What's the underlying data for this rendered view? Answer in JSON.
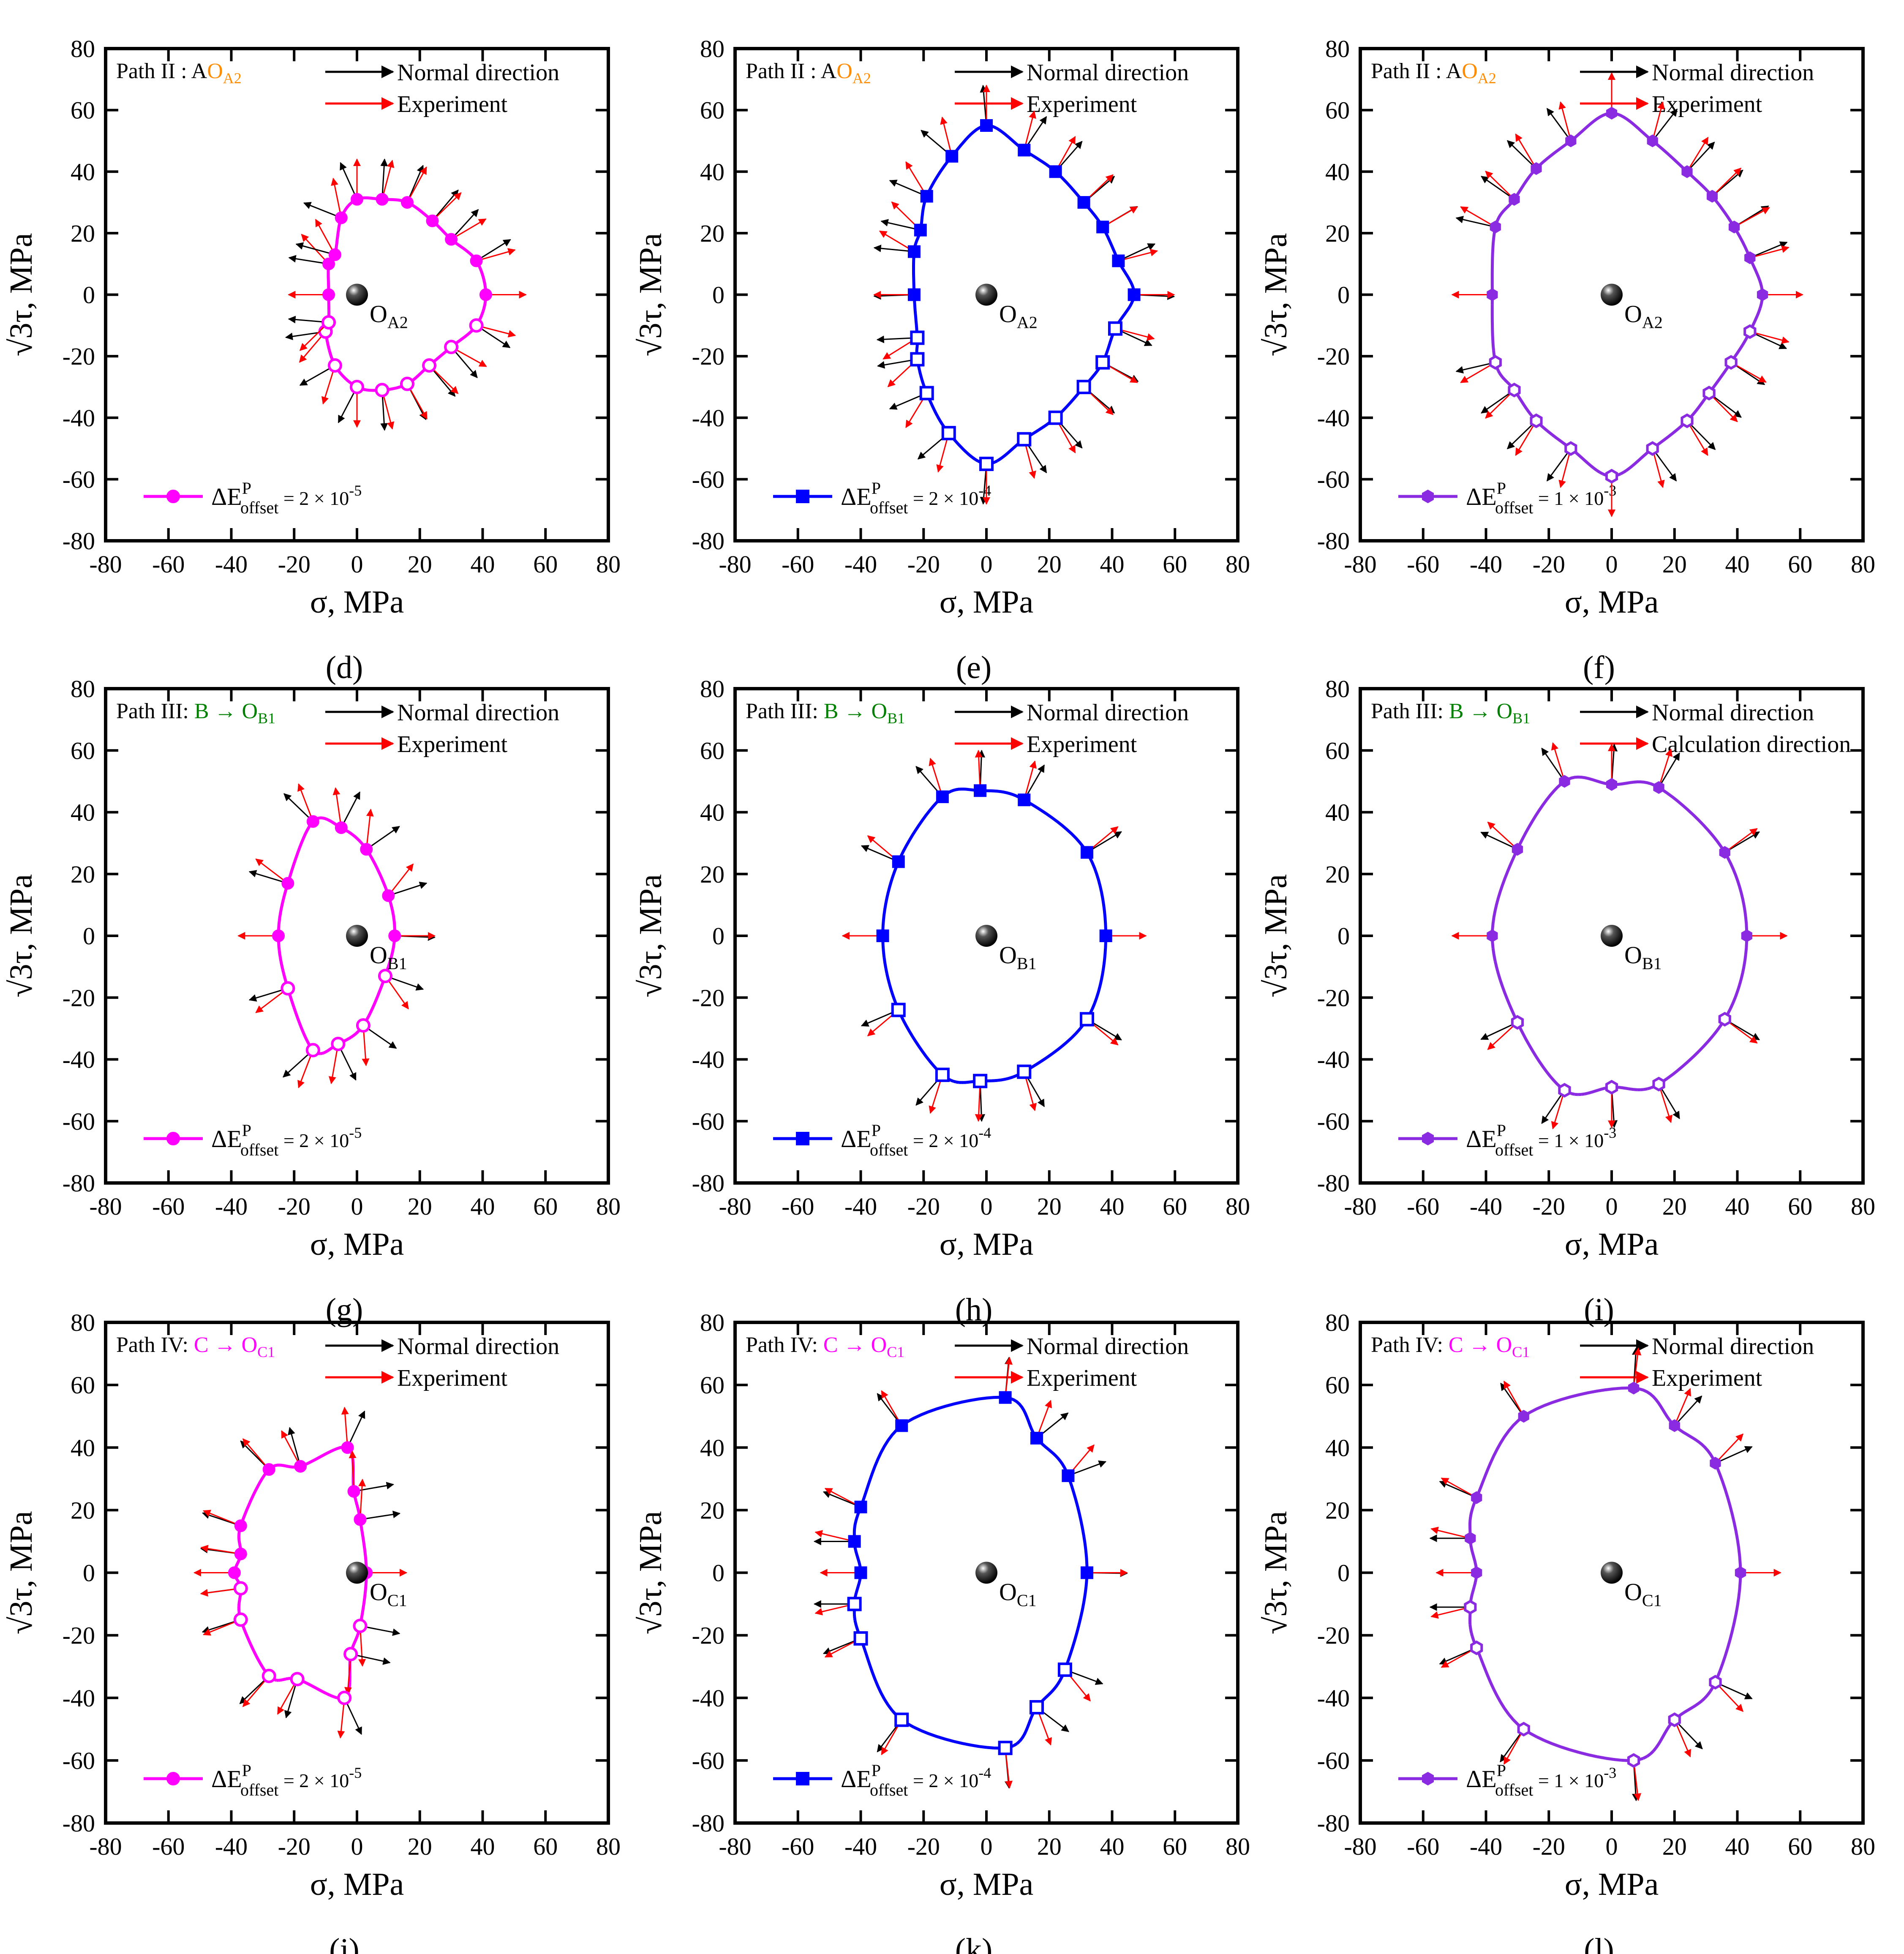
{
  "chart_data": [
    {
      "panel": "(d)",
      "title": "Path II : A",
      "target": "O",
      "target_sub": "A2",
      "title_color": "#FF8C00",
      "legend_top": [
        "Normal direction",
        "Experiment"
      ],
      "color": "#FF00FF",
      "marker": "circle",
      "legend_label": "ΔE",
      "legend_sup": "P",
      "legend_sub": "offset",
      "legend_value": " = 2 × 10",
      "legend_exp": "-5",
      "center_label": "O",
      "center_sub": "A2",
      "type": "line",
      "xlabel": "σ, MPa",
      "ylabel": "√3τ, MPa",
      "xlim": [
        -80,
        80
      ],
      "ylim": [
        -80,
        80
      ],
      "ticks": [
        -80,
        -60,
        -40,
        -20,
        0,
        20,
        40,
        60,
        80
      ],
      "center": [
        0,
        0
      ],
      "measured": [
        [
          -9,
          0
        ],
        [
          -9,
          10
        ],
        [
          -7,
          13
        ],
        [
          -5,
          25
        ],
        [
          0,
          31
        ],
        [
          8,
          31
        ],
        [
          16,
          30
        ],
        [
          24,
          24
        ],
        [
          30,
          18
        ],
        [
          38,
          11
        ],
        [
          41,
          0
        ],
        [
          38,
          -10
        ],
        [
          30,
          -17
        ],
        [
          23,
          -23
        ],
        [
          16,
          -29
        ],
        [
          8,
          -31
        ],
        [
          0,
          -30
        ],
        [
          -7,
          -23
        ],
        [
          -10,
          -12
        ],
        [
          -9,
          -9
        ]
      ]
    },
    {
      "panel": "(e)",
      "title": "Path II : A",
      "target": "O",
      "target_sub": "A2",
      "title_color": "#FF8C00",
      "legend_top": [
        "Normal direction",
        "Experiment"
      ],
      "color": "#0000FF",
      "marker": "square",
      "legend_label": "ΔE",
      "legend_sup": "P",
      "legend_sub": "offset",
      "legend_value": " = 2 × 10",
      "legend_exp": "-4",
      "center_label": "O",
      "center_sub": "A2",
      "type": "line",
      "xlabel": "σ, MPa",
      "ylabel": "√3τ, MPa",
      "xlim": [
        -80,
        80
      ],
      "ylim": [
        -80,
        80
      ],
      "ticks": [
        -80,
        -60,
        -40,
        -20,
        0,
        20,
        40,
        60,
        80
      ],
      "center": [
        0,
        0
      ],
      "measured": [
        [
          -23,
          0
        ],
        [
          -23,
          14
        ],
        [
          -21,
          21
        ],
        [
          -19,
          32
        ],
        [
          -11,
          45
        ],
        [
          0,
          55
        ],
        [
          12,
          47
        ],
        [
          22,
          40
        ],
        [
          31,
          30
        ],
        [
          37,
          22
        ],
        [
          42,
          11
        ],
        [
          47,
          0
        ],
        [
          41,
          -11
        ],
        [
          37,
          -22
        ],
        [
          31,
          -30
        ],
        [
          22,
          -40
        ],
        [
          12,
          -47
        ],
        [
          0,
          -55
        ],
        [
          -12,
          -45
        ],
        [
          -19,
          -32
        ],
        [
          -22,
          -21
        ],
        [
          -22,
          -14
        ]
      ]
    },
    {
      "panel": "(f)",
      "title": "Path II : A",
      "target": "O",
      "target_sub": "A2",
      "title_color": "#FF8C00",
      "legend_top": [
        "Normal direction",
        "Experiment"
      ],
      "color": "#8A2BE2",
      "marker": "hexagon",
      "legend_label": "ΔE",
      "legend_sup": "P",
      "legend_sub": "offset",
      "legend_value": " = 1 × 10",
      "legend_exp": "-3",
      "center_label": "O",
      "center_sub": "A2",
      "type": "line",
      "xlabel": "σ, MPa",
      "ylabel": "√3τ, MPa",
      "xlim": [
        -80,
        80
      ],
      "ylim": [
        -80,
        80
      ],
      "ticks": [
        -80,
        -60,
        -40,
        -20,
        0,
        20,
        40,
        60,
        80
      ],
      "center": [
        0,
        0
      ],
      "measured": [
        [
          -38,
          0
        ],
        [
          -37,
          22
        ],
        [
          -31,
          31
        ],
        [
          -24,
          41
        ],
        [
          -13,
          50
        ],
        [
          0,
          59
        ],
        [
          13,
          50
        ],
        [
          24,
          40
        ],
        [
          32,
          32
        ],
        [
          39,
          22
        ],
        [
          44,
          12
        ],
        [
          48,
          0
        ],
        [
          44,
          -12
        ],
        [
          38,
          -22
        ],
        [
          31,
          -32
        ],
        [
          24,
          -41
        ],
        [
          13,
          -50
        ],
        [
          0,
          -59
        ],
        [
          -13,
          -50
        ],
        [
          -24,
          -41
        ],
        [
          -31,
          -31
        ],
        [
          -37,
          -22
        ]
      ]
    },
    {
      "panel": "(g)",
      "title": "Path III: ",
      "target": "B → O",
      "target_sub": "B1",
      "title_color": "#008000",
      "legend_top": [
        "Normal direction",
        "Experiment"
      ],
      "color": "#FF00FF",
      "marker": "circle",
      "legend_label": "ΔE",
      "legend_sup": "P",
      "legend_sub": "offset",
      "legend_value": " = 2 × 10",
      "legend_exp": "-5",
      "center_label": "O",
      "center_sub": "B1",
      "type": "line",
      "xlabel": "σ, MPa",
      "ylabel": "√3τ, MPa",
      "xlim": [
        -80,
        80
      ],
      "ylim": [
        -80,
        80
      ],
      "ticks": [
        -80,
        -60,
        -40,
        -20,
        0,
        20,
        40,
        60,
        80
      ],
      "center": [
        0,
        0
      ],
      "measured": [
        [
          -25,
          0
        ],
        [
          -22,
          17
        ],
        [
          -14,
          37
        ],
        [
          -5,
          35
        ],
        [
          3,
          28
        ],
        [
          10,
          13
        ],
        [
          12,
          0
        ],
        [
          9,
          -13
        ],
        [
          2,
          -29
        ],
        [
          -6,
          -35
        ],
        [
          -14,
          -37
        ],
        [
          -22,
          -17
        ]
      ]
    },
    {
      "panel": "(h)",
      "title": "Path III: ",
      "target": "B → O",
      "target_sub": "B1",
      "title_color": "#008000",
      "legend_top": [
        "Normal direction",
        "Experiment"
      ],
      "color": "#0000FF",
      "marker": "square",
      "legend_label": "ΔE",
      "legend_sup": "P",
      "legend_sub": "offset",
      "legend_value": " = 2 × 10",
      "legend_exp": "-4",
      "center_label": "O",
      "center_sub": "B1",
      "type": "line",
      "xlabel": "σ, MPa",
      "ylabel": "√3τ, MPa",
      "xlim": [
        -80,
        80
      ],
      "ylim": [
        -80,
        80
      ],
      "ticks": [
        -80,
        -60,
        -40,
        -20,
        0,
        20,
        40,
        60,
        80
      ],
      "center": [
        0,
        0
      ],
      "measured": [
        [
          -33,
          0
        ],
        [
          -28,
          24
        ],
        [
          -14,
          45
        ],
        [
          -2,
          47
        ],
        [
          12,
          44
        ],
        [
          32,
          27
        ],
        [
          38,
          0
        ],
        [
          32,
          -27
        ],
        [
          12,
          -44
        ],
        [
          -2,
          -47
        ],
        [
          -14,
          -45
        ],
        [
          -28,
          -24
        ]
      ]
    },
    {
      "panel": "(i)",
      "title": "Path III: ",
      "target": "B → O",
      "target_sub": "B1",
      "title_color": "#008000",
      "legend_top": [
        "Normal direction",
        "Calculation direction"
      ],
      "color": "#8A2BE2",
      "marker": "hexagon",
      "legend_label": "ΔE",
      "legend_sup": "P",
      "legend_sub": "offset",
      "legend_value": " = 1 × 10",
      "legend_exp": "-3",
      "center_label": "O",
      "center_sub": "B1",
      "type": "line",
      "xlabel": "σ, MPa",
      "ylabel": "√3τ, MPa",
      "xlim": [
        -80,
        80
      ],
      "ylim": [
        -80,
        80
      ],
      "ticks": [
        -80,
        -60,
        -40,
        -20,
        0,
        20,
        40,
        60,
        80
      ],
      "center": [
        0,
        0
      ],
      "measured": [
        [
          -38,
          0
        ],
        [
          -30,
          28
        ],
        [
          -15,
          50
        ],
        [
          0,
          49
        ],
        [
          15,
          48
        ],
        [
          36,
          27
        ],
        [
          43,
          0
        ],
        [
          36,
          -27
        ],
        [
          15,
          -48
        ],
        [
          0,
          -49
        ],
        [
          -15,
          -50
        ],
        [
          -30,
          -28
        ]
      ]
    },
    {
      "panel": "(j)",
      "title": "Path IV: ",
      "target": "C → O",
      "target_sub": "C1",
      "title_color": "#FF00FF",
      "legend_top": [
        "Normal direction",
        "Experiment"
      ],
      "color": "#FF00FF",
      "marker": "circle",
      "legend_label": "ΔE",
      "legend_sup": "P",
      "legend_sub": "offset",
      "legend_value": " = 2 × 10",
      "legend_exp": "-5",
      "center_label": "O",
      "center_sub": "C1",
      "type": "line",
      "xlabel": "σ, MPa",
      "ylabel": "√3τ, MPa",
      "xlim": [
        -80,
        80
      ],
      "ylim": [
        -80,
        80
      ],
      "ticks": [
        -80,
        -60,
        -40,
        -20,
        0,
        20,
        40,
        60,
        80
      ],
      "center": [
        0,
        0
      ],
      "measured": [
        [
          -39,
          0
        ],
        [
          -37,
          6
        ],
        [
          -37,
          15
        ],
        [
          -28,
          33
        ],
        [
          -18,
          34
        ],
        [
          -3,
          40
        ],
        [
          -1,
          26
        ],
        [
          1,
          17
        ],
        [
          3,
          0
        ],
        [
          1,
          -17
        ],
        [
          -2,
          -26
        ],
        [
          -4,
          -40
        ],
        [
          -19,
          -34
        ],
        [
          -28,
          -33
        ],
        [
          -37,
          -15
        ],
        [
          -37,
          -5
        ]
      ]
    },
    {
      "panel": "(k)",
      "title": "Path IV: ",
      "target": "C → O",
      "target_sub": "C1",
      "title_color": "#FF00FF",
      "legend_top": [
        "Normal direction",
        "Experiment"
      ],
      "color": "#0000FF",
      "marker": "square",
      "legend_label": "ΔE",
      "legend_sup": "P",
      "legend_sub": "offset",
      "legend_value": " = 2 × 10",
      "legend_exp": "-4",
      "center_label": "O",
      "center_sub": "C1",
      "type": "line",
      "xlabel": "σ, MPa",
      "ylabel": "√3τ, MPa",
      "xlim": [
        -80,
        80
      ],
      "ylim": [
        -80,
        80
      ],
      "ticks": [
        -80,
        -60,
        -40,
        -20,
        0,
        20,
        40,
        60,
        80
      ],
      "center": [
        0,
        0
      ],
      "measured": [
        [
          -40,
          0
        ],
        [
          -42,
          10
        ],
        [
          -40,
          21
        ],
        [
          -27,
          47
        ],
        [
          6,
          56
        ],
        [
          16,
          43
        ],
        [
          26,
          31
        ],
        [
          32,
          0
        ],
        [
          25,
          -31
        ],
        [
          16,
          -43
        ],
        [
          6,
          -56
        ],
        [
          -27,
          -47
        ],
        [
          -40,
          -21
        ],
        [
          -42,
          -10
        ]
      ]
    },
    {
      "panel": "(l)",
      "title": "Path IV: ",
      "target": "C → O",
      "target_sub": "C1",
      "title_color": "#FF00FF",
      "legend_top": [
        "Normal direction",
        "Experiment"
      ],
      "color": "#8A2BE2",
      "marker": "hexagon",
      "legend_label": "ΔE",
      "legend_sup": "P",
      "legend_sub": "offset",
      "legend_value": " = 1 × 10",
      "legend_exp": "-3",
      "center_label": "O",
      "center_sub": "C1",
      "type": "line",
      "xlabel": "σ, MPa",
      "ylabel": "√3τ, MPa",
      "xlim": [
        -80,
        80
      ],
      "ylim": [
        -80,
        80
      ],
      "ticks": [
        -80,
        -60,
        -40,
        -20,
        0,
        20,
        40,
        60,
        80
      ],
      "center": [
        0,
        0
      ],
      "measured": [
        [
          -43,
          0
        ],
        [
          -45,
          11
        ],
        [
          -43,
          24
        ],
        [
          -28,
          50
        ],
        [
          7,
          59
        ],
        [
          20,
          47
        ],
        [
          33,
          35
        ],
        [
          41,
          0
        ],
        [
          33,
          -35
        ],
        [
          20,
          -47
        ],
        [
          7,
          -60
        ],
        [
          -28,
          -50
        ],
        [
          -43,
          -24
        ],
        [
          -45,
          -11
        ]
      ]
    }
  ]
}
